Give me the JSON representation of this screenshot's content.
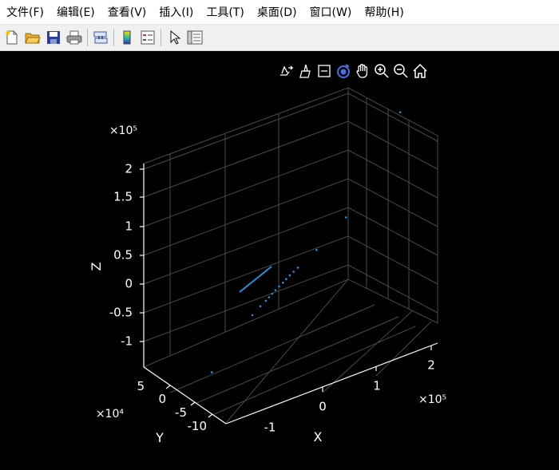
{
  "menu": [
    "文件(F)",
    "编辑(E)",
    "查看(V)",
    "插入(I)",
    "工具(T)",
    "桌面(D)",
    "窗口(W)",
    "帮助(H)"
  ],
  "toolbar_icons": [
    "new-figure-icon",
    "open-file-icon",
    "save-icon",
    "print-icon",
    "link-plot-icon",
    "insert-colorbar-icon",
    "insert-legend-icon",
    "edit-plot-pointer-icon",
    "property-inspector-icon"
  ],
  "axes_toolbar_icons": [
    "export-icon",
    "brush-icon",
    "datatips-icon",
    "rotate-3d-icon",
    "pan-icon",
    "zoom-in-icon",
    "zoom-out-icon",
    "home-icon"
  ],
  "colors": {
    "background": "#000000",
    "axis": "#ffffff",
    "grid": "#4a4a4a",
    "points": "#2a8fd8",
    "accent": "#4a6de5"
  },
  "chart_data": {
    "type": "scatter3d",
    "xlabel": "X",
    "ylabel": "Y",
    "zlabel": "Z",
    "x_exponent": "×10⁵",
    "y_exponent": "×10⁴",
    "z_exponent": "×10⁵",
    "x_ticks": [
      "-1",
      "0",
      "1",
      "2"
    ],
    "y_ticks": [
      "5",
      "0",
      "-5",
      "-10"
    ],
    "z_ticks": [
      "2",
      "1.5",
      "1",
      "0.5",
      "0",
      "-0.5",
      "-1"
    ],
    "xlim": [
      -150000,
      250000
    ],
    "ylim": [
      -125000,
      75000
    ],
    "zlim": [
      -125000,
      225000
    ],
    "grid": true,
    "points": [
      [
        248000,
        8000,
        205000
      ],
      [
        130000,
        -10000,
        75000
      ],
      [
        75000,
        -10000,
        38000
      ],
      [
        40000,
        -10000,
        20000
      ],
      [
        32000,
        -10000,
        16000
      ],
      [
        25000,
        -10000,
        12000
      ],
      [
        18000,
        -10000,
        8000
      ],
      [
        12000,
        -10000,
        4000
      ],
      [
        5000,
        -10000,
        0
      ],
      [
        -2000,
        -10000,
        -4000
      ],
      [
        -8000,
        -10000,
        -8000
      ],
      [
        -14000,
        -10000,
        -12000
      ],
      [
        -20000,
        -10000,
        -16000
      ],
      [
        -30000,
        -10000,
        -22000
      ],
      [
        -45000,
        -10000,
        -32000
      ],
      [
        -130000,
        -20000,
        -95000
      ]
    ]
  }
}
